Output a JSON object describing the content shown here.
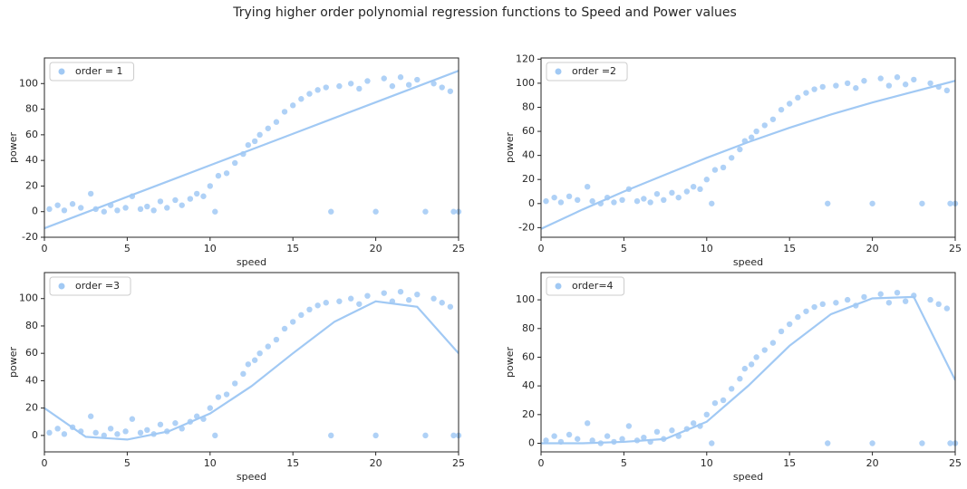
{
  "title": "Trying higher order polynomial regression functions to Speed and Power values",
  "chart_data": [
    {
      "type": "scatter",
      "xlabel": "speed",
      "ylabel": "power",
      "xlim": [
        0,
        25
      ],
      "xticks": [
        0,
        5,
        10,
        15,
        20,
        25
      ],
      "ylim": [
        -20,
        120
      ],
      "yticks": [
        -20,
        0,
        20,
        40,
        60,
        80,
        100
      ],
      "legend": "upper left",
      "series": [
        {
          "name": "order = 1",
          "color": "#a1c9f4",
          "x": [
            0.3,
            0.8,
            1.2,
            1.7,
            2.2,
            2.8,
            3.1,
            3.6,
            4.0,
            4.4,
            4.9,
            5.3,
            5.8,
            6.2,
            6.6,
            7.0,
            7.4,
            7.9,
            8.3,
            8.8,
            9.2,
            9.6,
            10.0,
            10.3,
            10.5,
            11.0,
            11.5,
            12.0,
            12.3,
            12.7,
            13.0,
            13.5,
            14.0,
            14.5,
            15.0,
            15.5,
            16.0,
            16.5,
            17.0,
            17.3,
            17.8,
            18.5,
            19.0,
            19.5,
            20.0,
            20.5,
            21.0,
            21.5,
            22.0,
            22.5,
            23.0,
            23.5,
            24.0,
            24.5,
            24.7,
            25.0
          ],
          "values": [
            2,
            5,
            1,
            6,
            3,
            14,
            2,
            0,
            5,
            1,
            3,
            12,
            2,
            4,
            1,
            8,
            3,
            9,
            5,
            10,
            14,
            12,
            20,
            0,
            28,
            30,
            38,
            45,
            52,
            55,
            60,
            65,
            70,
            78,
            83,
            88,
            92,
            95,
            97,
            0,
            98,
            100,
            96,
            102,
            0,
            104,
            98,
            105,
            99,
            103,
            0,
            100,
            97,
            94,
            0,
            0
          ]
        }
      ],
      "fit": {
        "color": "#a1c9f4",
        "x": [
          0,
          2.5,
          5,
          7.5,
          10,
          12.5,
          15,
          17.5,
          20,
          22.5,
          25
        ],
        "values": [
          -13,
          -0.7,
          11.6,
          23.9,
          36.2,
          48.5,
          60.8,
          73.1,
          85.4,
          97.7,
          110
        ]
      }
    },
    {
      "type": "scatter",
      "xlabel": "speed",
      "ylabel": "power",
      "xlim": [
        0,
        25
      ],
      "xticks": [
        0,
        5,
        10,
        15,
        20,
        25
      ],
      "ylim": [
        -28,
        121
      ],
      "yticks": [
        -20,
        0,
        20,
        40,
        60,
        80,
        100,
        120
      ],
      "legend": "upper left",
      "series": [
        {
          "name": "order =2",
          "color": "#a1c9f4",
          "x": [
            0.3,
            0.8,
            1.2,
            1.7,
            2.2,
            2.8,
            3.1,
            3.6,
            4.0,
            4.4,
            4.9,
            5.3,
            5.8,
            6.2,
            6.6,
            7.0,
            7.4,
            7.9,
            8.3,
            8.8,
            9.2,
            9.6,
            10.0,
            10.3,
            10.5,
            11.0,
            11.5,
            12.0,
            12.3,
            12.7,
            13.0,
            13.5,
            14.0,
            14.5,
            15.0,
            15.5,
            16.0,
            16.5,
            17.0,
            17.3,
            17.8,
            18.5,
            19.0,
            19.5,
            20.0,
            20.5,
            21.0,
            21.5,
            22.0,
            22.5,
            23.0,
            23.5,
            24.0,
            24.5,
            24.7,
            25.0
          ],
          "values": [
            2,
            5,
            1,
            6,
            3,
            14,
            2,
            0,
            5,
            1,
            3,
            12,
            2,
            4,
            1,
            8,
            3,
            9,
            5,
            10,
            14,
            12,
            20,
            0,
            28,
            30,
            38,
            45,
            52,
            55,
            60,
            65,
            70,
            78,
            83,
            88,
            92,
            95,
            97,
            0,
            98,
            100,
            96,
            102,
            0,
            104,
            98,
            105,
            99,
            103,
            0,
            100,
            97,
            94,
            0,
            0
          ]
        }
      ],
      "fit": {
        "color": "#a1c9f4",
        "x": [
          0,
          2.5,
          5,
          7.5,
          10,
          12.5,
          15,
          17.5,
          20,
          22.5,
          25
        ],
        "values": [
          -21,
          -5,
          10,
          24,
          38,
          51,
          63,
          74,
          84,
          93,
          102
        ]
      }
    },
    {
      "type": "scatter",
      "xlabel": "speed",
      "ylabel": "power",
      "xlim": [
        0,
        25
      ],
      "xticks": [
        0,
        5,
        10,
        15,
        20,
        25
      ],
      "ylim": [
        -12,
        119
      ],
      "yticks": [
        0,
        20,
        40,
        60,
        80,
        100
      ],
      "legend": "upper left",
      "series": [
        {
          "name": "order =3",
          "color": "#a1c9f4",
          "x": [
            0.3,
            0.8,
            1.2,
            1.7,
            2.2,
            2.8,
            3.1,
            3.6,
            4.0,
            4.4,
            4.9,
            5.3,
            5.8,
            6.2,
            6.6,
            7.0,
            7.4,
            7.9,
            8.3,
            8.8,
            9.2,
            9.6,
            10.0,
            10.3,
            10.5,
            11.0,
            11.5,
            12.0,
            12.3,
            12.7,
            13.0,
            13.5,
            14.0,
            14.5,
            15.0,
            15.5,
            16.0,
            16.5,
            17.0,
            17.3,
            17.8,
            18.5,
            19.0,
            19.5,
            20.0,
            20.5,
            21.0,
            21.5,
            22.0,
            22.5,
            23.0,
            23.5,
            24.0,
            24.5,
            24.7,
            25.0
          ],
          "values": [
            2,
            5,
            1,
            6,
            3,
            14,
            2,
            0,
            5,
            1,
            3,
            12,
            2,
            4,
            1,
            8,
            3,
            9,
            5,
            10,
            14,
            12,
            20,
            0,
            28,
            30,
            38,
            45,
            52,
            55,
            60,
            65,
            70,
            78,
            83,
            88,
            92,
            95,
            97,
            0,
            98,
            100,
            96,
            102,
            0,
            104,
            98,
            105,
            99,
            103,
            0,
            100,
            97,
            94,
            0,
            0
          ]
        }
      ],
      "fit": {
        "color": "#a1c9f4",
        "x": [
          0,
          2.5,
          5,
          7.5,
          10,
          12.5,
          15,
          17.5,
          20,
          22.5,
          25
        ],
        "values": [
          20,
          -1,
          -3,
          3,
          16,
          36,
          60,
          83,
          98,
          94,
          60
        ]
      }
    },
    {
      "type": "scatter",
      "xlabel": "speed",
      "ylabel": "power",
      "xlim": [
        0,
        25
      ],
      "xticks": [
        0,
        5,
        10,
        15,
        20,
        25
      ],
      "ylim": [
        -6,
        119
      ],
      "yticks": [
        0,
        20,
        40,
        60,
        80,
        100
      ],
      "legend": "upper left",
      "series": [
        {
          "name": "order=4",
          "color": "#a1c9f4",
          "x": [
            0.3,
            0.8,
            1.2,
            1.7,
            2.2,
            2.8,
            3.1,
            3.6,
            4.0,
            4.4,
            4.9,
            5.3,
            5.8,
            6.2,
            6.6,
            7.0,
            7.4,
            7.9,
            8.3,
            8.8,
            9.2,
            9.6,
            10.0,
            10.3,
            10.5,
            11.0,
            11.5,
            12.0,
            12.3,
            12.7,
            13.0,
            13.5,
            14.0,
            14.5,
            15.0,
            15.5,
            16.0,
            16.5,
            17.0,
            17.3,
            17.8,
            18.5,
            19.0,
            19.5,
            20.0,
            20.5,
            21.0,
            21.5,
            22.0,
            22.5,
            23.0,
            23.5,
            24.0,
            24.5,
            24.7,
            25.0
          ],
          "values": [
            2,
            5,
            1,
            6,
            3,
            14,
            2,
            0,
            5,
            1,
            3,
            12,
            2,
            4,
            1,
            8,
            3,
            9,
            5,
            10,
            14,
            12,
            20,
            0,
            28,
            30,
            38,
            45,
            52,
            55,
            60,
            65,
            70,
            78,
            83,
            88,
            92,
            95,
            97,
            0,
            98,
            100,
            96,
            102,
            0,
            104,
            98,
            105,
            99,
            103,
            0,
            100,
            97,
            94,
            0,
            0
          ]
        }
      ],
      "fit": {
        "color": "#a1c9f4",
        "x": [
          0,
          2.5,
          5,
          7.5,
          10,
          12.5,
          15,
          17.5,
          20,
          22.5,
          25
        ],
        "values": [
          0,
          0,
          1,
          3,
          15,
          40,
          68,
          90,
          101,
          102,
          44
        ]
      }
    }
  ]
}
